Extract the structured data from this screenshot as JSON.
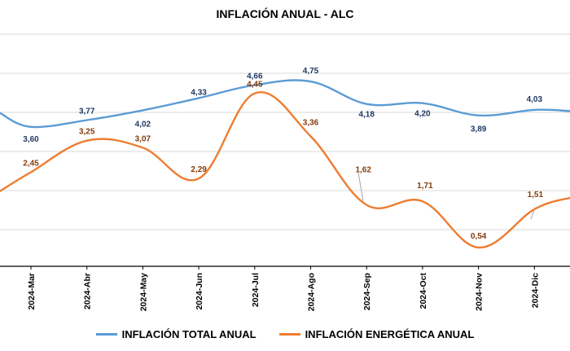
{
  "chart_data": {
    "type": "line",
    "title": "INFLACIÓN ANUAL - ALC",
    "categories": [
      "2024-Mar",
      "2024-Abr",
      "2024-May",
      "2024-Jun",
      "2024-Jul",
      "2024-Ago",
      "2024-Sep",
      "2024-Oct",
      "2024-Nov",
      "2024-Dic"
    ],
    "series": [
      {
        "name": "INFLACIÓN TOTAL ANUAL",
        "color": "#5B9BD5",
        "label_color": "#1F3864",
        "values": [
          3.6,
          3.77,
          4.02,
          4.33,
          4.66,
          4.75,
          4.18,
          4.2,
          3.89,
          4.03
        ],
        "labels": [
          "3,60",
          "3,77",
          "4,02",
          "4,33",
          "4,66",
          "4,75",
          "4,18",
          "4,20",
          "3,89",
          "4,03"
        ]
      },
      {
        "name": "INFLACIÓN ENERGÉTICA ANUAL",
        "color": "#ED7D31",
        "label_color": "#843C0C",
        "values": [
          2.45,
          3.25,
          3.07,
          2.29,
          4.45,
          3.36,
          1.62,
          1.71,
          0.54,
          1.51
        ],
        "labels": [
          "2,45",
          "3,25",
          "3,07",
          "2,29",
          "4,45",
          "3,36",
          "1,62",
          "1,71",
          "0,54",
          "1,51"
        ]
      }
    ],
    "grid": true,
    "legend": "bottom"
  }
}
